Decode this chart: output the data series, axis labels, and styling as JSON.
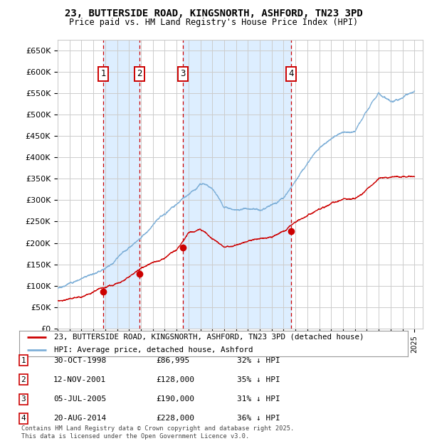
{
  "title": "23, BUTTERSIDE ROAD, KINGSNORTH, ASHFORD, TN23 3PD",
  "subtitle": "Price paid vs. HM Land Registry's House Price Index (HPI)",
  "ylim": [
    0,
    675000
  ],
  "yticks": [
    0,
    50000,
    100000,
    150000,
    200000,
    250000,
    300000,
    350000,
    400000,
    450000,
    500000,
    550000,
    600000,
    650000
  ],
  "ytick_labels": [
    "£0",
    "£50K",
    "£100K",
    "£150K",
    "£200K",
    "£250K",
    "£300K",
    "£350K",
    "£400K",
    "£450K",
    "£500K",
    "£550K",
    "£600K",
    "£650K"
  ],
  "xlim_start": 1995.3,
  "xlim_end": 2025.7,
  "purchases": [
    {
      "num": 1,
      "date": "30-OCT-1998",
      "price": 86995,
      "pct": "32%",
      "year": 1998.83
    },
    {
      "num": 2,
      "date": "12-NOV-2001",
      "price": 128000,
      "pct": "35%",
      "year": 2001.87
    },
    {
      "num": 3,
      "date": "05-JUL-2005",
      "price": 190000,
      "pct": "31%",
      "year": 2005.51
    },
    {
      "num": 4,
      "date": "20-AUG-2014",
      "price": 228000,
      "pct": "36%",
      "year": 2014.63
    }
  ],
  "legend_red": "23, BUTTERSIDE ROAD, KINGSNORTH, ASHFORD, TN23 3PD (detached house)",
  "legend_blue": "HPI: Average price, detached house, Ashford",
  "footer": "Contains HM Land Registry data © Crown copyright and database right 2025.\nThis data is licensed under the Open Government Licence v3.0.",
  "bg_color": "#ffffff",
  "grid_color": "#cccccc",
  "red_line_color": "#cc0000",
  "blue_line_color": "#7fb0d8",
  "shading_color": "#ddeeff",
  "purchase_box_color": "#cc0000",
  "hpi_control_years": [
    1995,
    1996,
    1997,
    1998,
    1999,
    2000,
    2001,
    2002,
    2003,
    2004,
    2005,
    2006,
    2007,
    2008,
    2009,
    2010,
    2011,
    2012,
    2013,
    2014,
    2015,
    2016,
    2017,
    2018,
    2019,
    2020,
    2021,
    2022,
    2023,
    2024,
    2025
  ],
  "hpi_control_vals": [
    95000,
    105000,
    118000,
    130000,
    148000,
    172000,
    197000,
    223000,
    248000,
    272000,
    295000,
    315000,
    340000,
    330000,
    285000,
    285000,
    290000,
    290000,
    300000,
    315000,
    350000,
    385000,
    415000,
    440000,
    455000,
    460000,
    510000,
    555000,
    535000,
    545000,
    555000
  ],
  "red_control_years": [
    1995,
    1996,
    1997,
    1998,
    1999,
    2000,
    2001,
    2002,
    2003,
    2004,
    2005,
    2006,
    2007,
    2008,
    2009,
    2010,
    2011,
    2012,
    2013,
    2014,
    2015,
    2016,
    2017,
    2018,
    2019,
    2020,
    2021,
    2022,
    2023,
    2024,
    2025
  ],
  "red_control_vals": [
    65000,
    70000,
    76000,
    86995,
    95000,
    110000,
    128000,
    145000,
    158000,
    172000,
    190000,
    230000,
    235000,
    215000,
    198000,
    202000,
    210000,
    215000,
    218000,
    228000,
    250000,
    268000,
    285000,
    298000,
    305000,
    305000,
    325000,
    350000,
    350000,
    355000,
    355000
  ]
}
